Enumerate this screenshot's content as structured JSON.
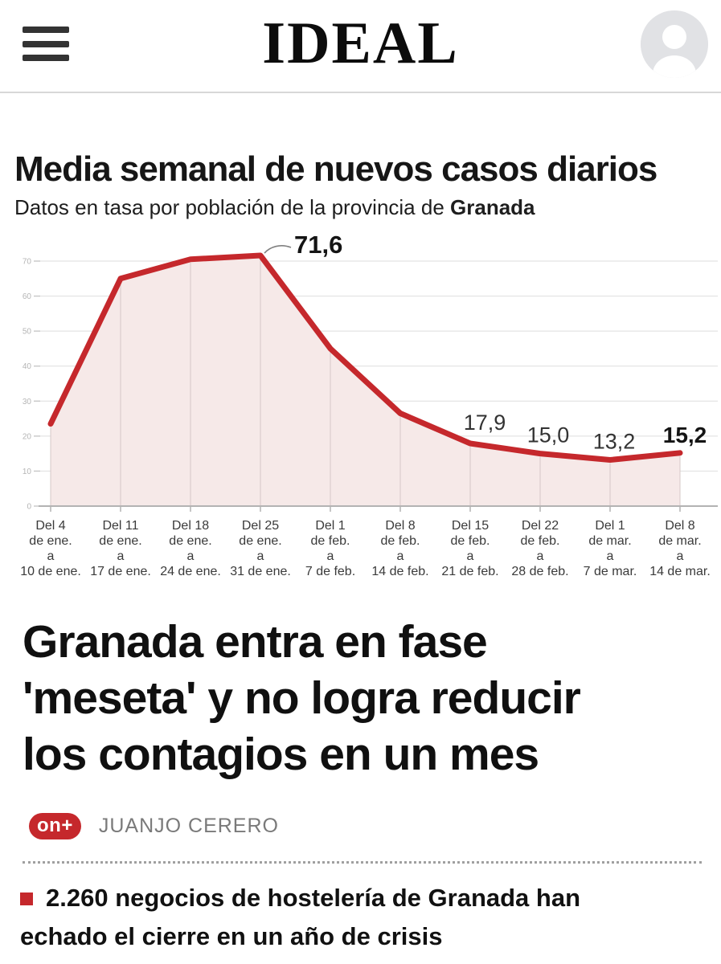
{
  "header": {
    "logo": "IDEAL"
  },
  "chart": {
    "title": "Media semanal de nuevos casos diarios",
    "subtitle_prefix": "Datos en tasa por población de la provincia de ",
    "subtitle_bold": "Granada"
  },
  "chart_data": {
    "type": "area",
    "title": "Media semanal de nuevos casos diarios",
    "subtitle": "Datos en tasa por población de la provincia de Granada",
    "categories": [
      [
        "Del 4",
        "de ene.",
        "a",
        "10 de ene."
      ],
      [
        "Del 11",
        "de ene.",
        "a",
        "17 de ene."
      ],
      [
        "Del 18",
        "de ene.",
        "a",
        "24 de ene."
      ],
      [
        "Del 25",
        "de ene.",
        "a",
        "31 de ene."
      ],
      [
        "Del 1",
        "de feb.",
        "a",
        "7 de feb."
      ],
      [
        "Del 8",
        "de feb.",
        "a",
        "14 de feb."
      ],
      [
        "Del 15",
        "de feb.",
        "a",
        "21 de feb."
      ],
      [
        "Del 22",
        "de feb.",
        "a",
        "28 de feb."
      ],
      [
        "Del 1",
        "de mar.",
        "a",
        "7 de mar."
      ],
      [
        "Del 8",
        "de mar.",
        "a",
        "14 de mar."
      ]
    ],
    "values": [
      23.5,
      65,
      70.5,
      71.6,
      45,
      26.5,
      17.9,
      15.0,
      13.2,
      15.2
    ],
    "point_labels": [
      "",
      "",
      "",
      "71,6",
      "",
      "",
      "17,9",
      "15,0",
      "13,2",
      "15,2"
    ],
    "ylim": [
      0,
      75
    ],
    "yticks": [
      0,
      10,
      20,
      30,
      40,
      50,
      60,
      70
    ],
    "grid": true,
    "legend": false,
    "line_color": "#c5282c",
    "fill_color": "#f6e9e8"
  },
  "article": {
    "headline_lines": [
      "Granada entra en fase",
      "'meseta' y no logra reducir",
      "los contagios en un mes"
    ],
    "badge": "on+",
    "author": "JUANJO CERERO",
    "bullet_text": "2.260 negocios de hostelería de Granada han echado el cierre en un año de crisis"
  }
}
